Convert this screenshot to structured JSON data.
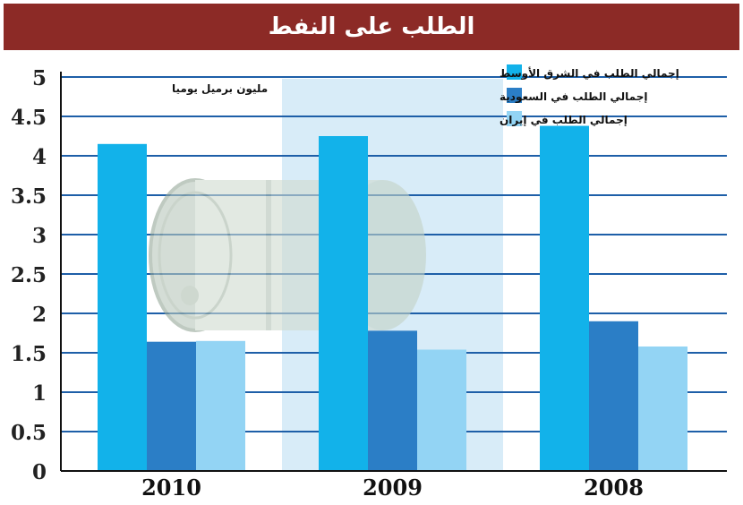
{
  "colors": {
    "banner": "#8c2a26",
    "banner_text": "#ffffff",
    "grid": "#1e5fa8",
    "axis": "#111111",
    "highlight_panel": "#d8ecf8",
    "barrel": "#cfd8cf"
  },
  "decoration": {
    "icon": "oil-barrel-icon"
  },
  "chart_data": {
    "type": "bar",
    "title": "الطلب على النفط",
    "unit_label": "مليون برميل يوميا",
    "categories": [
      "2010",
      "2009",
      "2008"
    ],
    "series": [
      {
        "name": "إجمالي الطلب في الشرق الأوسط",
        "color": "#12b2ea",
        "values": [
          4.15,
          4.25,
          4.38
        ]
      },
      {
        "name": "إجمالي الطلب في السعودية",
        "color": "#2b7ec6",
        "values": [
          1.64,
          1.78,
          1.9
        ]
      },
      {
        "name": "إجمالي الطلب في إيران",
        "color": "#93d4f4",
        "values": [
          1.65,
          1.54,
          1.58
        ]
      }
    ],
    "yticks": [
      "0",
      "0.5",
      "1",
      "1.5",
      "2",
      "2.5",
      "3",
      "3.5",
      "4",
      "4.5",
      "5"
    ],
    "ylim": [
      0,
      5
    ],
    "grid": true,
    "legend_position": "top-right"
  }
}
